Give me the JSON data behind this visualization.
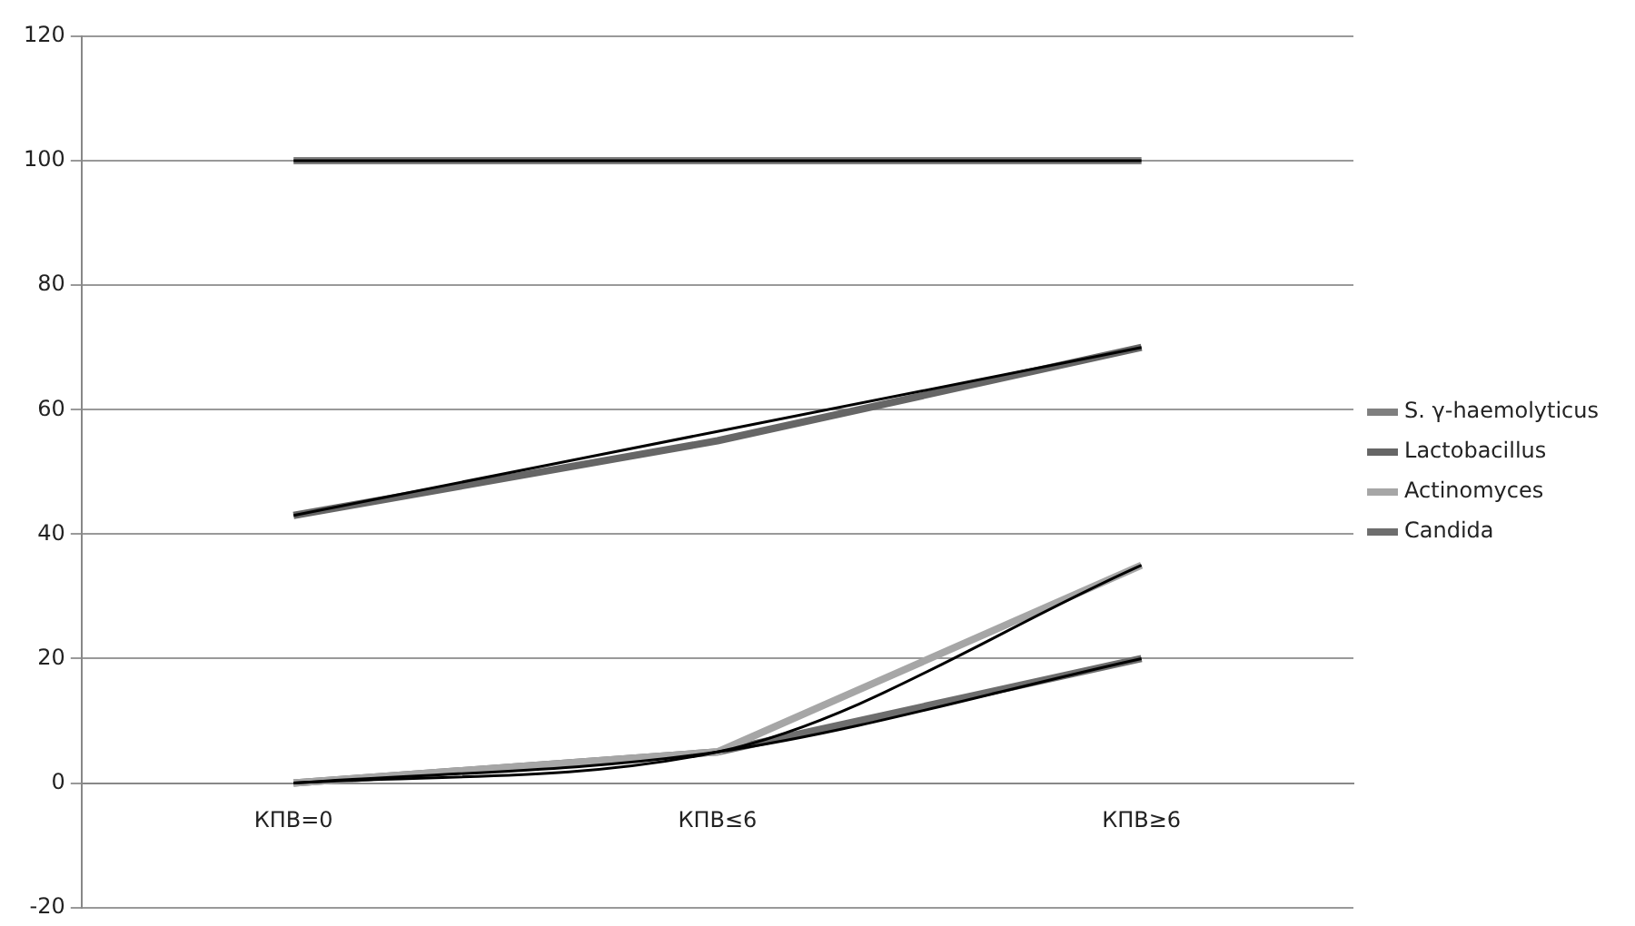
{
  "chart_data": {
    "type": "line",
    "categories": [
      "КПВ=0",
      "КПВ≤6",
      "КПВ≥6"
    ],
    "series": [
      {
        "name": "S. γ-haemolyticus",
        "color": "#7f7f7f",
        "values": [
          100,
          100,
          100
        ]
      },
      {
        "name": "Lactobacillus",
        "color": "#666666",
        "values": [
          43,
          55,
          70
        ]
      },
      {
        "name": "Actinomyces",
        "color": "#a6a6a6",
        "values": [
          0,
          5,
          35
        ]
      },
      {
        "name": "Candida",
        "color": "#6e6e6e",
        "values": [
          0,
          5,
          20
        ]
      },
      {
        "color": "#000000",
        "values": [
          100,
          100,
          100
        ]
      },
      {
        "color": "#000000",
        "values": [
          43,
          56.5,
          70
        ]
      },
      {
        "color": "#000000",
        "values": [
          0,
          5,
          35
        ]
      },
      {
        "color": "#000000",
        "values": [
          0,
          5,
          20
        ]
      }
    ],
    "ylim": [
      -20,
      120
    ],
    "yticks": [
      -20,
      0,
      20,
      40,
      60,
      80,
      100,
      120
    ],
    "grid": "y",
    "legend": "right",
    "marker": "none"
  }
}
